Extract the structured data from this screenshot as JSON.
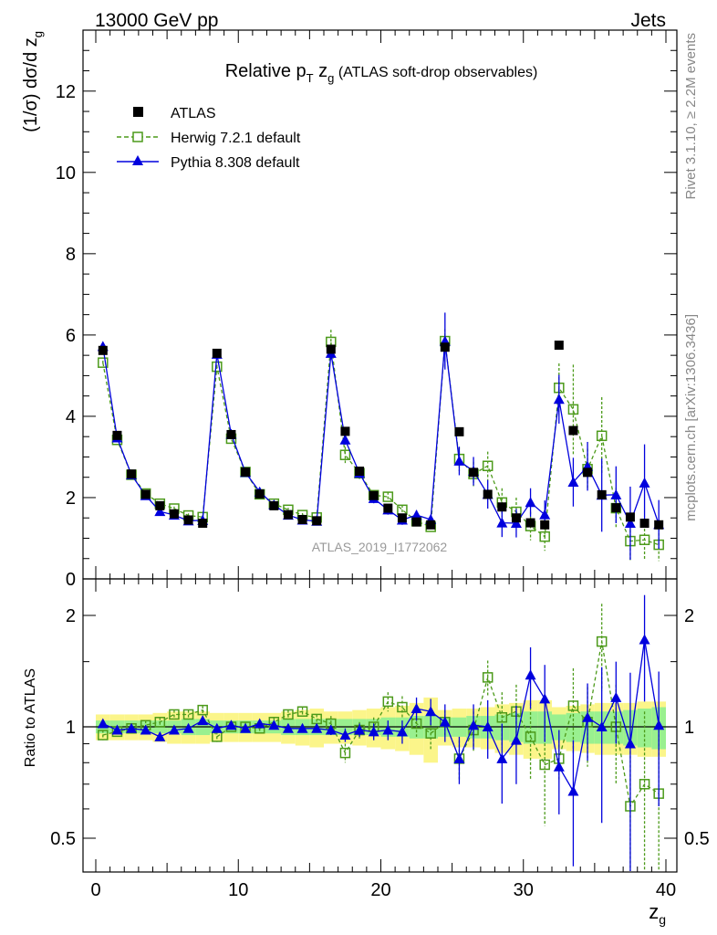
{
  "header": {
    "left": "13000 GeV pp",
    "right": "Jets"
  },
  "side_labels": {
    "rivet": "Rivet 3.1.10, ≥ 2.2M events",
    "mcplots": "mcplots.cern.ch [arXiv:1306.3436]"
  },
  "colors": {
    "atlas": "#000000",
    "herwig": "#4c9a1a",
    "pythia": "#0000dd",
    "band_inner": "#99f08f",
    "band_outer": "#fbf58a",
    "watermark": "#999999"
  },
  "chart_data": [
    {
      "type": "scatter",
      "title_parts": {
        "pre": "Relative p",
        "sub1": "T",
        "mid": " z",
        "sub2": "g",
        "post": " (ATLAS soft-drop observables)"
      },
      "ylabel": "(1/σ) dσ/d z_g",
      "ylabel_parts": {
        "main": "(1/σ) dσ/d z",
        "sub": "g"
      },
      "watermark": "ATLAS_2019_I1772062",
      "xlim": [
        0,
        40
      ],
      "ylim": [
        0,
        13.5
      ],
      "yticks": [
        0,
        2,
        4,
        6,
        8,
        10,
        12
      ],
      "legend_position": "top-left",
      "x": [
        0.5,
        1.5,
        2.5,
        3.5,
        4.5,
        5.5,
        6.5,
        7.5,
        8.5,
        9.5,
        10.5,
        11.5,
        12.5,
        13.5,
        14.5,
        15.5,
        16.5,
        17.5,
        18.5,
        19.5,
        20.5,
        21.5,
        22.5,
        23.5,
        24.5,
        25.5,
        26.5,
        27.5,
        28.5,
        29.5,
        30.5,
        31.5,
        32.5,
        33.5,
        34.5,
        35.5,
        36.5,
        37.5,
        38.5,
        39.5
      ],
      "series": [
        {
          "name": "ATLAS",
          "marker": "filled-square",
          "values": [
            5.62,
            3.53,
            2.58,
            2.08,
            1.8,
            1.6,
            1.45,
            1.37,
            5.55,
            3.55,
            2.63,
            2.09,
            1.8,
            1.58,
            1.46,
            1.43,
            5.65,
            3.63,
            2.65,
            2.05,
            1.74,
            1.5,
            1.4,
            1.33,
            5.7,
            3.62,
            2.62,
            2.08,
            1.77,
            1.5,
            1.38,
            1.33,
            5.75,
            3.65,
            2.62,
            2.07,
            1.75,
            1.52,
            1.37,
            1.33
          ]
        },
        {
          "name": "Herwig 7.2.1 default",
          "marker": "open-square-dashed",
          "values": [
            5.32,
            3.42,
            2.56,
            2.1,
            1.85,
            1.73,
            1.56,
            1.52,
            5.22,
            3.45,
            2.63,
            2.08,
            1.85,
            1.7,
            1.57,
            1.51,
            5.83,
            3.05,
            2.6,
            2.06,
            2.02,
            1.7,
            1.42,
            1.28,
            5.85,
            2.95,
            2.58,
            2.78,
            1.88,
            1.65,
            1.3,
            1.04,
            4.7,
            4.17,
            2.7,
            3.52,
            1.74,
            0.93,
            0.96,
            0.84
          ],
          "errors": [
            0.05,
            0.05,
            0.05,
            0.05,
            0.05,
            0.05,
            0.05,
            0.05,
            0.05,
            0.05,
            0.05,
            0.05,
            0.05,
            0.05,
            0.05,
            0.05,
            0.3,
            0.2,
            0.15,
            0.12,
            0.12,
            0.12,
            0.12,
            0.12,
            0.3,
            0.3,
            0.3,
            0.35,
            0.35,
            0.35,
            0.35,
            0.35,
            0.6,
            1.1,
            0.5,
            0.95,
            0.5,
            0.5,
            0.5,
            0.4
          ]
        },
        {
          "name": "Pythia 8.308 default",
          "marker": "filled-triangle-solid",
          "values": [
            5.72,
            3.47,
            2.56,
            2.05,
            1.66,
            1.57,
            1.43,
            1.44,
            5.53,
            3.56,
            2.62,
            2.14,
            1.82,
            1.57,
            1.45,
            1.42,
            5.55,
            3.42,
            2.6,
            1.98,
            1.7,
            1.45,
            1.57,
            1.46,
            5.85,
            2.9,
            2.65,
            2.08,
            1.38,
            1.37,
            1.88,
            1.58,
            4.42,
            2.38,
            2.77,
            2.06,
            2.07,
            1.37,
            2.36,
            1.34
          ],
          "errors": [
            0.05,
            0.05,
            0.05,
            0.05,
            0.05,
            0.05,
            0.05,
            0.05,
            0.05,
            0.05,
            0.05,
            0.05,
            0.05,
            0.05,
            0.05,
            0.05,
            0.15,
            0.12,
            0.12,
            0.12,
            0.12,
            0.12,
            0.12,
            0.12,
            0.7,
            0.35,
            0.35,
            0.35,
            0.35,
            0.35,
            0.35,
            0.35,
            0.6,
            0.6,
            0.6,
            0.9,
            0.7,
            0.9,
            0.95,
            0.6
          ]
        }
      ]
    },
    {
      "type": "scatter",
      "ylabel": "Ratio to ATLAS",
      "xlabel": "z_g",
      "xlabel_parts": {
        "main": "z",
        "sub": "g"
      },
      "xlim": [
        0,
        40
      ],
      "ylim": [
        0.34,
        2.45
      ],
      "yticks": [
        0.5,
        1,
        2
      ],
      "ytick_labels": [
        "0.5",
        "1",
        "2"
      ],
      "xticks": [
        0,
        10,
        20,
        30,
        40
      ],
      "x": [
        0.5,
        1.5,
        2.5,
        3.5,
        4.5,
        5.5,
        6.5,
        7.5,
        8.5,
        9.5,
        10.5,
        11.5,
        12.5,
        13.5,
        14.5,
        15.5,
        16.5,
        17.5,
        18.5,
        19.5,
        20.5,
        21.5,
        22.5,
        23.5,
        24.5,
        25.5,
        26.5,
        27.5,
        28.5,
        29.5,
        30.5,
        31.5,
        32.5,
        33.5,
        34.5,
        35.5,
        36.5,
        37.5,
        38.5,
        39.5
      ],
      "reference_band": {
        "inner": [
          0.04,
          0.04,
          0.04,
          0.04,
          0.04,
          0.04,
          0.05,
          0.05,
          0.04,
          0.04,
          0.04,
          0.04,
          0.04,
          0.05,
          0.05,
          0.05,
          0.05,
          0.05,
          0.05,
          0.05,
          0.06,
          0.06,
          0.07,
          0.07,
          0.06,
          0.06,
          0.07,
          0.07,
          0.08,
          0.09,
          0.1,
          0.1,
          0.08,
          0.09,
          0.1,
          0.1,
          0.1,
          0.11,
          0.12,
          0.13
        ],
        "outer": [
          0.08,
          0.08,
          0.08,
          0.08,
          0.09,
          0.1,
          0.1,
          0.1,
          0.09,
          0.09,
          0.09,
          0.09,
          0.09,
          0.1,
          0.11,
          0.12,
          0.1,
          0.1,
          0.11,
          0.12,
          0.13,
          0.14,
          0.16,
          0.2,
          0.11,
          0.12,
          0.12,
          0.13,
          0.15,
          0.16,
          0.18,
          0.18,
          0.13,
          0.14,
          0.15,
          0.16,
          0.16,
          0.16,
          0.17,
          0.17
        ]
      },
      "series": [
        {
          "name": "Herwig 7.2.1 default",
          "values": [
            0.95,
            0.97,
            0.99,
            1.01,
            1.03,
            1.08,
            1.08,
            1.11,
            0.94,
            1.0,
            1.0,
            0.99,
            1.03,
            1.08,
            1.1,
            1.05,
            1.02,
            0.85,
            0.98,
            1.0,
            1.17,
            1.13,
            1.02,
            0.96,
            1.03,
            0.82,
            0.98,
            1.36,
            1.06,
            1.1,
            0.94,
            0.79,
            0.82,
            1.14,
            1.03,
            1.7,
            1.0,
            0.61,
            0.7,
            0.66
          ],
          "errors": [
            0.03,
            0.03,
            0.03,
            0.03,
            0.03,
            0.03,
            0.03,
            0.03,
            0.03,
            0.03,
            0.03,
            0.03,
            0.03,
            0.03,
            0.03,
            0.03,
            0.05,
            0.05,
            0.05,
            0.06,
            0.07,
            0.08,
            0.08,
            0.09,
            0.08,
            0.1,
            0.12,
            0.15,
            0.18,
            0.2,
            0.22,
            0.25,
            0.1,
            0.3,
            0.25,
            0.45,
            0.3,
            0.3,
            0.4,
            0.35
          ]
        },
        {
          "name": "Pythia 8.308 default",
          "values": [
            1.02,
            0.98,
            0.99,
            0.98,
            0.94,
            0.98,
            0.99,
            1.04,
            0.99,
            1.01,
            0.99,
            1.02,
            1.01,
            0.99,
            0.99,
            0.99,
            0.98,
            0.95,
            0.98,
            0.97,
            0.98,
            0.97,
            1.12,
            1.1,
            1.03,
            0.82,
            1.01,
            1.0,
            0.82,
            0.92,
            1.38,
            1.19,
            0.78,
            0.67,
            1.06,
            1.0,
            1.2,
            0.9,
            1.72,
            1.01
          ],
          "errors": [
            0.02,
            0.02,
            0.02,
            0.02,
            0.02,
            0.02,
            0.02,
            0.02,
            0.02,
            0.02,
            0.02,
            0.02,
            0.02,
            0.02,
            0.02,
            0.02,
            0.03,
            0.04,
            0.04,
            0.05,
            0.06,
            0.07,
            0.08,
            0.09,
            0.12,
            0.12,
            0.14,
            0.18,
            0.2,
            0.22,
            0.26,
            0.28,
            0.2,
            0.25,
            0.25,
            0.45,
            0.3,
            0.5,
            0.55,
            0.4
          ]
        }
      ]
    }
  ]
}
